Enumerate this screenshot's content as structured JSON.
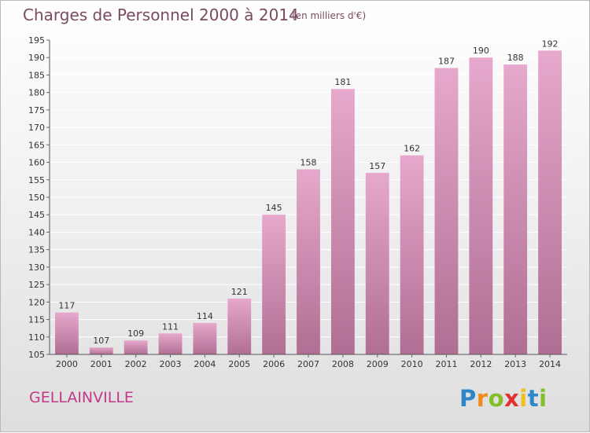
{
  "header": {
    "title": "Charges de Personnel 2000 à 2014",
    "subtitle": "(en milliers d'€)"
  },
  "footer": {
    "town": "GELLAINVILLE",
    "logo": "Proxiti"
  },
  "colors": {
    "bar_top": "#e6a8cc",
    "bar_bottom": "#b16e94",
    "grid": "#ffffff",
    "axis_text": "#333333",
    "title": "#7a4a62",
    "town": "#c03a86"
  },
  "chart_data": {
    "type": "bar",
    "title": "Charges de Personnel 2000 à 2014",
    "subtitle": "(en milliers d'€)",
    "xlabel": "",
    "ylabel": "",
    "categories": [
      "2000",
      "2001",
      "2002",
      "2003",
      "2004",
      "2005",
      "2006",
      "2007",
      "2008",
      "2009",
      "2010",
      "2011",
      "2012",
      "2013",
      "2014"
    ],
    "values": [
      117,
      107,
      109,
      111,
      114,
      121,
      145,
      158,
      181,
      157,
      162,
      187,
      190,
      188,
      192
    ],
    "ylim": [
      105,
      195
    ],
    "yticks": [
      105,
      110,
      115,
      120,
      125,
      130,
      135,
      140,
      145,
      150,
      155,
      160,
      165,
      170,
      175,
      180,
      185,
      190,
      195
    ],
    "grid": true,
    "legend": "none"
  }
}
